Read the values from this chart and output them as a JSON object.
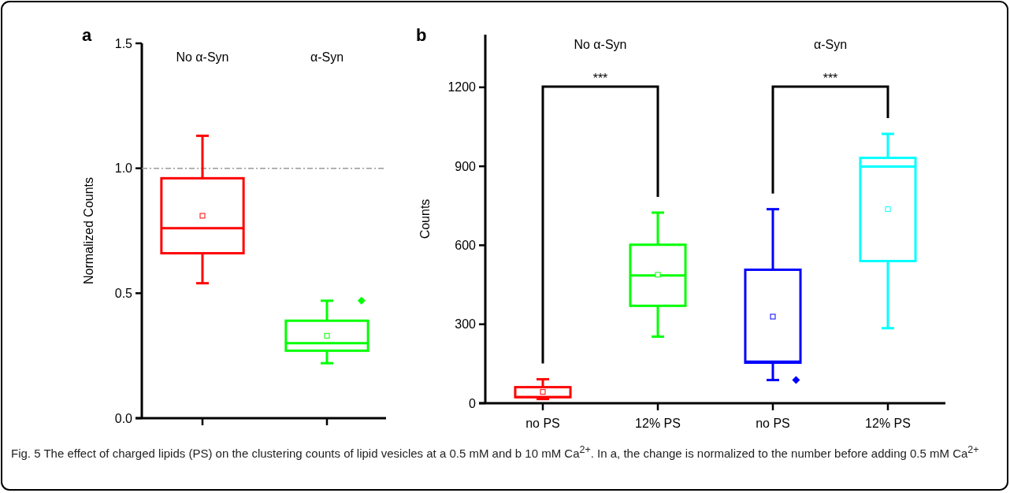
{
  "chart_data": [
    {
      "type": "box",
      "title": "a",
      "ylabel": "Normalized Counts",
      "categories": [
        "No α-Syn",
        "α-Syn"
      ],
      "colors": [
        "#ff0000",
        "#00ff00"
      ],
      "ylim": [
        0,
        1.5
      ],
      "yticks": [
        {
          "value": 0,
          "label": "0.0"
        },
        {
          "value": 0.5,
          "label": "0.5"
        },
        {
          "value": 1,
          "label": "1.0"
        },
        {
          "value": 1.5,
          "label": "1.5"
        }
      ],
      "marker": "diamond",
      "grid": false,
      "boxes": [
        {
          "low": 0.54,
          "q1": 0.66,
          "median": 0.76,
          "q3": 0.96,
          "high": 1.13,
          "mean": 0.81
        },
        {
          "low": 0.22,
          "q1": 0.27,
          "median": 0.3,
          "q3": 0.39,
          "high": 0.47,
          "mean": 0.33,
          "outliers": [
            0.47
          ]
        }
      ],
      "ref_lines": [
        {
          "axis": "y",
          "value": 1,
          "color": "#999999",
          "line_style": "dashed"
        }
      ]
    },
    {
      "type": "box",
      "title": "b",
      "ylabel": "Counts",
      "categories": [
        "no PS",
        "12% PS",
        "no PS",
        "12% PS"
      ],
      "colors": [
        "#ff0000",
        "#00ff00",
        "#0000ff",
        "#00ffff"
      ],
      "ylim": [
        0,
        1400
      ],
      "yticks": [
        0,
        300,
        600,
        900,
        1200
      ],
      "marker": "diamond",
      "grid": false,
      "boxes": [
        {
          "low": 16,
          "q1": 23,
          "median": 23,
          "q3": 61,
          "high": 91,
          "mean": 43
        },
        {
          "low": 253,
          "q1": 370,
          "median": 485,
          "q3": 602,
          "high": 724,
          "mean": 488
        },
        {
          "low": 88,
          "q1": 154,
          "median": 158,
          "q3": 507,
          "high": 737,
          "mean": 329,
          "outliers": [
            88
          ]
        },
        {
          "low": 285,
          "q1": 540,
          "median": 899,
          "q3": 932,
          "high": 1023,
          "mean": 737
        }
      ],
      "annotations": [
        "No α-Syn",
        "α-Syn",
        "***",
        "***"
      ]
    },
    {
      "type": "other",
      "annotations": [
        "Fig. 5 The effect of charged lipids (PS) on the clustering counts of lipid vesicles at a 0.5 mM and b 10 mM Ca$^{2+}$. In a, the change is normalized to the number before adding 0.5 mM Ca$^{2+}$"
      ]
    }
  ]
}
